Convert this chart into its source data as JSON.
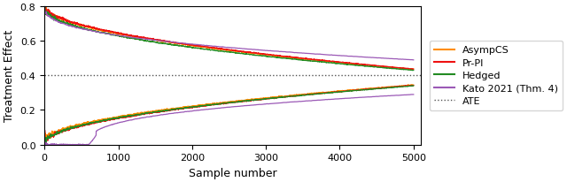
{
  "xlabel": "Sample number",
  "ylabel": "Treatment Effect",
  "xlim": [
    0,
    5100
  ],
  "ylim": [
    0.0,
    0.8
  ],
  "yticks": [
    0.0,
    0.2,
    0.4,
    0.6,
    0.8
  ],
  "xticks": [
    0,
    1000,
    2000,
    3000,
    4000,
    5000
  ],
  "ATE": 0.4,
  "n_samples": 5000,
  "colors": {
    "AsympCS": "#FF8C00",
    "PrPI": "#EE1111",
    "Hedged": "#228B22",
    "Kato": "#9B59B6"
  },
  "figsize": [
    6.4,
    2.07
  ],
  "dpi": 100,
  "upper_final_main": 0.435,
  "lower_final_main": 0.345,
  "upper_final_kato": 0.49,
  "lower_final_kato": 0.29,
  "ate_line_color": "#555555"
}
